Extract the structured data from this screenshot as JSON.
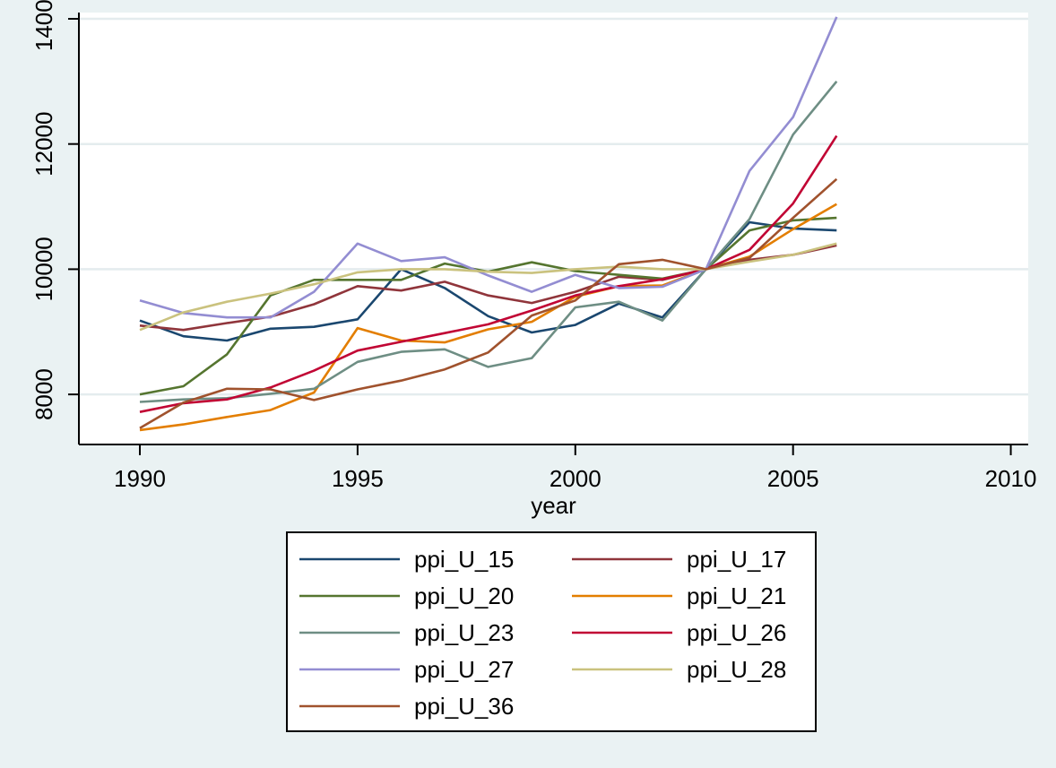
{
  "chart_data": {
    "type": "line",
    "xlabel": "year",
    "ylabel": "",
    "xlim": [
      1988.6,
      2010.4
    ],
    "ylim": [
      7200,
      14100
    ],
    "xticks": [
      1990,
      1995,
      2000,
      2005,
      2010
    ],
    "yticks": [
      8000,
      10000,
      12000,
      14000
    ],
    "xtick_labels": [
      "1990",
      "1995",
      "2000",
      "2005",
      "2010"
    ],
    "ytick_labels": [
      "8000",
      "10000",
      "12000",
      "14000"
    ],
    "grid": "horizontal",
    "legend_placement": "bottom",
    "x": [
      1990,
      1991,
      1992,
      1993,
      1994,
      1995,
      1996,
      1997,
      1998,
      1999,
      2000,
      2001,
      2002,
      2003,
      2004,
      2005,
      2006
    ],
    "series": [
      {
        "name": "ppi_U_15",
        "color": "#1a476f",
        "values": [
          9180,
          8930,
          8860,
          9050,
          9080,
          9200,
          10000,
          9700,
          9250,
          8990,
          9110,
          9450,
          9230,
          10000,
          10750,
          10650,
          10620
        ]
      },
      {
        "name": "ppi_U_17",
        "color": "#90353b",
        "values": [
          9100,
          9030,
          9140,
          9240,
          9440,
          9730,
          9660,
          9800,
          9580,
          9460,
          9640,
          9880,
          9830,
          10000,
          10150,
          10230,
          10380
        ]
      },
      {
        "name": "ppi_U_20",
        "color": "#55752f",
        "values": [
          8000,
          8130,
          8640,
          9580,
          9830,
          9830,
          9830,
          10090,
          9960,
          10110,
          9970,
          9910,
          9850,
          10000,
          10620,
          10780,
          10820
        ]
      },
      {
        "name": "ppi_U_21",
        "color": "#e37e00",
        "values": [
          7430,
          7520,
          7640,
          7750,
          8030,
          9060,
          8860,
          8830,
          9040,
          9160,
          9560,
          9730,
          9740,
          10000,
          10200,
          10640,
          11040
        ]
      },
      {
        "name": "ppi_U_23",
        "color": "#6e8e84",
        "values": [
          7880,
          7920,
          7940,
          8010,
          8090,
          8520,
          8680,
          8720,
          8440,
          8580,
          9390,
          9480,
          9180,
          10000,
          10800,
          12150,
          13000
        ]
      },
      {
        "name": "ppi_U_26",
        "color": "#c10534",
        "values": [
          7720,
          7860,
          7920,
          8110,
          8380,
          8700,
          8840,
          8980,
          9120,
          9340,
          9580,
          9730,
          9840,
          10000,
          10310,
          11050,
          12130
        ]
      },
      {
        "name": "ppi_U_27",
        "color": "#938dd2",
        "values": [
          9500,
          9300,
          9230,
          9230,
          9640,
          10410,
          10130,
          10190,
          9900,
          9640,
          9910,
          9700,
          9720,
          10000,
          11570,
          12430,
          14030
        ]
      },
      {
        "name": "ppi_U_28",
        "color": "#cac27e",
        "values": [
          9030,
          9310,
          9480,
          9610,
          9760,
          9950,
          10000,
          10000,
          9960,
          9940,
          10000,
          10040,
          10000,
          10000,
          10120,
          10230,
          10410
        ]
      },
      {
        "name": "ppi_U_36",
        "color": "#a0522d",
        "values": [
          7460,
          7870,
          8090,
          8080,
          7910,
          8080,
          8220,
          8400,
          8670,
          9260,
          9500,
          10080,
          10150,
          10000,
          10180,
          10820,
          11440
        ]
      }
    ]
  }
}
